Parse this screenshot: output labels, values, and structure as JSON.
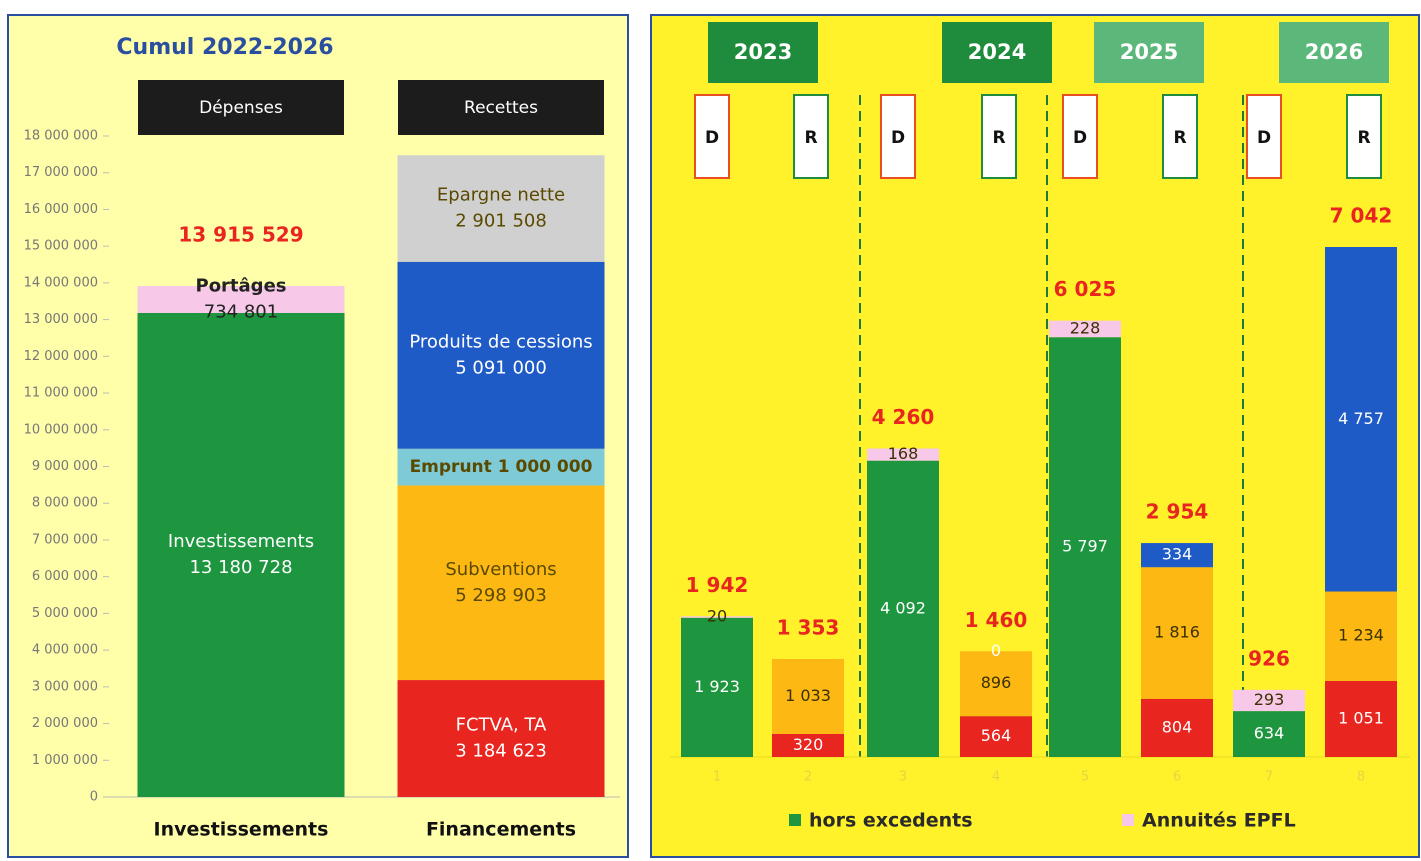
{
  "chart_data": [
    {
      "type": "stacked-bar",
      "title": "Cumul 2022-2026",
      "headers": [
        "Dépenses",
        "Recettes"
      ],
      "categories": [
        "Investissements",
        "Financements"
      ],
      "ylim": [
        0,
        18000000
      ],
      "yticks": [
        0,
        {
          "value": 1000000,
          "label": "1 000 000"
        },
        {
          "value": 2000000,
          "label": "2 000 000"
        },
        {
          "value": 3000000,
          "label": "3 000 000"
        },
        {
          "value": 4000000,
          "label": "4 000 000"
        },
        {
          "value": 5000000,
          "label": "5 000 000"
        },
        {
          "value": 6000000,
          "label": "6 000 000"
        },
        {
          "value": 7000000,
          "label": "7 000 000"
        },
        {
          "value": 8000000,
          "label": "8 000 000"
        },
        {
          "value": 9000000,
          "label": "9 000 000"
        },
        {
          "value": 10000000,
          "label": "10 000 000"
        },
        {
          "value": 11000000,
          "label": "11 000 000"
        },
        {
          "value": 12000000,
          "label": "12 000 000"
        },
        {
          "value": 13000000,
          "label": "13 000 000"
        },
        {
          "value": 14000000,
          "label": "14 000 000"
        },
        {
          "value": 15000000,
          "label": "15 000 000"
        },
        {
          "value": 16000000,
          "label": "16 000 000"
        },
        {
          "value": 17000000,
          "label": "17 000 000"
        },
        {
          "value": 18000000,
          "label": "18 000 000"
        }
      ],
      "series": [
        {
          "name": "Investissements",
          "color": "#1e9640",
          "values": [
            13180728,
            null
          ],
          "value_labels": [
            "13 180 728",
            null
          ]
        },
        {
          "name": "Portâges",
          "color": "#f7c8e8",
          "values": [
            734801,
            null
          ],
          "value_labels": [
            "734 801",
            null
          ]
        },
        {
          "name": "FCTVA, TA",
          "color": "#e8251f",
          "values": [
            null,
            3184623
          ],
          "value_labels": [
            null,
            "3 184 623"
          ]
        },
        {
          "name": "Subventions",
          "color": "#fdb813",
          "values": [
            null,
            5298903
          ],
          "value_labels": [
            null,
            "5 298 903"
          ]
        },
        {
          "name": "Emprunt",
          "color": "#7ecbd7",
          "values": [
            null,
            1000000
          ],
          "value_labels": [
            null,
            "1 000 000"
          ]
        },
        {
          "name": "Produits de cessions",
          "color": "#1f5bc6",
          "values": [
            null,
            5091000
          ],
          "value_labels": [
            null,
            "5 091 000"
          ]
        },
        {
          "name": "Epargne nette",
          "color": "#d0d0d0",
          "values": [
            null,
            2901508
          ],
          "value_labels": [
            null,
            "2 901 508"
          ]
        }
      ],
      "totals": [
        13915529,
        null
      ],
      "total_labels": [
        "13 915 529",
        null
      ]
    },
    {
      "type": "stacked-bar",
      "groups": [
        "2023",
        "2024",
        "2025",
        "2026"
      ],
      "bar_letters": [
        "D",
        "R",
        "D",
        "R",
        "D",
        "R",
        "D",
        "R"
      ],
      "categories": [
        "1",
        "2",
        "3",
        "4",
        "5",
        "6",
        "7",
        "8"
      ],
      "series": [
        {
          "name": "hors excedents",
          "color": "#1e9640",
          "values": [
            1923,
            null,
            4092,
            null,
            5797,
            null,
            634,
            null
          ],
          "value_labels": [
            "1 923",
            null,
            "4 092",
            null,
            "5 797",
            null,
            "634",
            null
          ]
        },
        {
          "name": "Annuités EPFL",
          "color": "#f7c8e8",
          "values": [
            20,
            null,
            168,
            null,
            228,
            null,
            293,
            null
          ]
        },
        {
          "color": "#e8251f",
          "values": [
            null,
            320,
            null,
            564,
            null,
            804,
            null,
            1051
          ],
          "value_labels": [
            null,
            "320",
            null,
            "564",
            null,
            "804",
            null,
            "1 051"
          ]
        },
        {
          "color": "#fdb813",
          "values": [
            null,
            1033,
            null,
            896,
            null,
            1816,
            null,
            1234
          ],
          "value_labels": [
            null,
            "1 033",
            null,
            "896",
            null,
            "1 816",
            null,
            "1 234"
          ]
        },
        {
          "color": "#1f5bc6",
          "values": [
            null,
            null,
            null,
            0,
            null,
            334,
            null,
            4757
          ],
          "value_labels": [
            null,
            null,
            null,
            "0",
            null,
            "334",
            null,
            "4 757"
          ]
        }
      ],
      "totals": [
        1942,
        1353,
        4260,
        1460,
        6025,
        2954,
        926,
        7042
      ],
      "total_labels": [
        "1 942",
        "1 353",
        "4 260",
        "1 460",
        "6 025",
        "2 954",
        "926",
        "7 042"
      ]
    }
  ]
}
